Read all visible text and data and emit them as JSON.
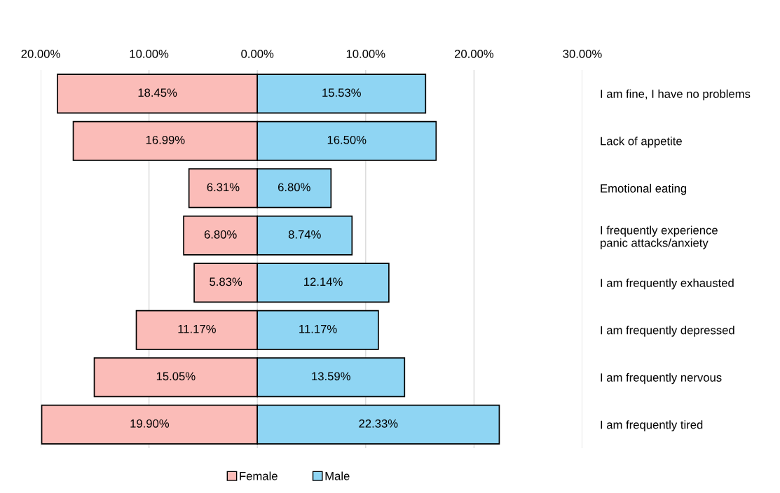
{
  "chart_data": {
    "type": "bar",
    "orientation": "horizontal",
    "categories": [
      "I am fine, I have no problems",
      "Lack of appetite",
      "Emotional eating",
      "I frequently experience\npanic attacks/anxiety",
      "I am frequently exhausted",
      "I am frequently depressed",
      "I am frequently nervous",
      "I am frequently tired"
    ],
    "series": [
      {
        "name": "Female",
        "color": "#fbbcb8",
        "base": [
          -18.45,
          -16.99,
          -6.31,
          -6.8,
          -5.83,
          -11.17,
          -15.05,
          -19.9
        ],
        "values": [
          18.45,
          16.99,
          6.31,
          6.8,
          5.83,
          11.17,
          15.05,
          19.9
        ],
        "value_labels": [
          "18.45%",
          "16.99%",
          "6.31%",
          "6.80%",
          "5.83%",
          "11.17%",
          "15.05%",
          "19.90%"
        ]
      },
      {
        "name": "Male",
        "color": "#8fd5f3",
        "values": [
          15.53,
          16.5,
          6.8,
          8.74,
          12.14,
          11.17,
          13.59,
          22.33
        ],
        "value_labels": [
          "15.53%",
          "16.50%",
          "6.80%",
          "8.74%",
          "12.14%",
          "11.17%",
          "13.59%",
          "22.33%"
        ]
      }
    ],
    "xlim": [
      -20,
      30
    ],
    "xticks": [
      {
        "value": -20,
        "label": "20.00%"
      },
      {
        "value": -10,
        "label": "10.00%"
      },
      {
        "value": 0,
        "label": "0.00%"
      },
      {
        "value": 10,
        "label": "10.00%"
      },
      {
        "value": 20,
        "label": "20.00%"
      },
      {
        "value": 30,
        "label": "30.00%"
      }
    ],
    "grid": "x",
    "legend": "bottom"
  }
}
